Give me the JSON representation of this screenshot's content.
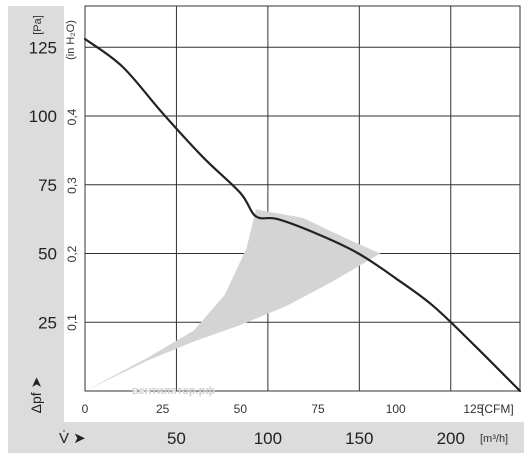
{
  "chart_data": {
    "type": "line",
    "title": "",
    "x_primary": {
      "unit_label": "[m³/h]",
      "symbol": "V̇ ➤",
      "ticks": [
        "50",
        "100",
        "150",
        "200"
      ],
      "tick_values": [
        50,
        100,
        150,
        200
      ]
    },
    "x_secondary": {
      "unit_label": "[CFM]",
      "ticks": [
        "0",
        "25",
        "50",
        "75",
        "100",
        "125"
      ],
      "tick_values": [
        0,
        25,
        50,
        75,
        100,
        125
      ],
      "range": [
        0,
        140
      ]
    },
    "y_primary": {
      "unit_label": "[Pa]",
      "symbol": "Δpf ➤",
      "ticks": [
        "25",
        "50",
        "75",
        "100",
        "125"
      ],
      "tick_values": [
        25,
        50,
        75,
        100,
        125
      ],
      "range": [
        0,
        140
      ]
    },
    "y_secondary": {
      "unit_label": "(in H₂O)",
      "ticks": [
        "0,1",
        "0,2",
        "0,3",
        "0,4"
      ],
      "tick_values": [
        0.1,
        0.2,
        0.3,
        0.4
      ]
    },
    "grid": true,
    "watermark": "вентилятор.рф",
    "series": [
      {
        "color": "#222222",
        "points": [
          [
            0,
            128
          ],
          [
            12,
            118
          ],
          [
            25,
            101
          ],
          [
            38,
            85
          ],
          [
            50,
            72
          ],
          [
            55,
            63.5
          ],
          [
            62,
            62.5
          ],
          [
            75,
            57
          ],
          [
            88,
            50
          ],
          [
            100,
            41
          ],
          [
            112,
            31
          ],
          [
            125,
            17
          ],
          [
            140,
            0
          ]
        ]
      }
    ],
    "shaded_region": {
      "color": "#d4d4d4",
      "upper_boundary": [
        [
          0,
          0
        ],
        [
          20,
          12
        ],
        [
          35,
          22
        ],
        [
          45,
          35
        ],
        [
          52,
          52
        ],
        [
          55,
          66
        ],
        [
          70,
          63
        ],
        [
          85,
          55
        ],
        [
          95,
          50
        ]
      ],
      "lower_boundary": [
        [
          95,
          50
        ],
        [
          80,
          40
        ],
        [
          65,
          31
        ],
        [
          50,
          24
        ],
        [
          35,
          18
        ],
        [
          20,
          11
        ],
        [
          0,
          0
        ]
      ]
    }
  }
}
